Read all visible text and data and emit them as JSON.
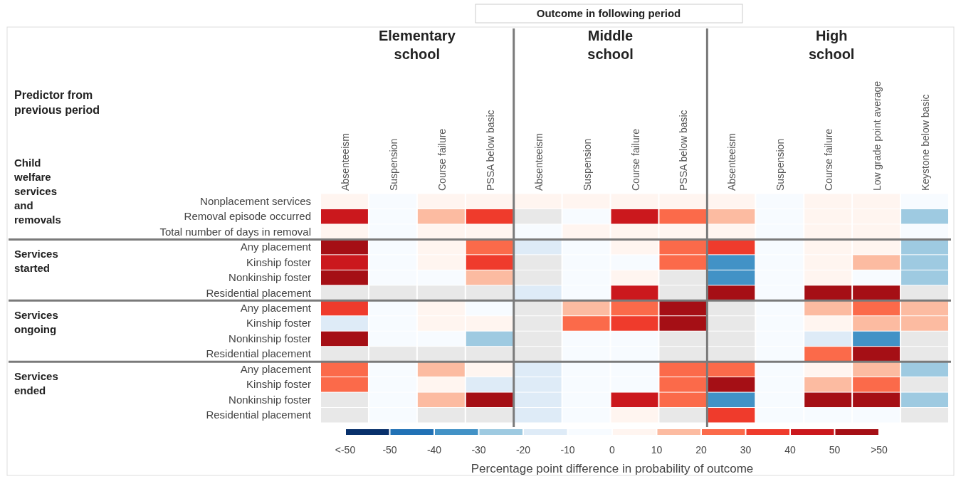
{
  "chart_data": {
    "type": "heatmap",
    "clabel": "Percentage point difference in probability of outcome",
    "annotations": [
      "Outcome in following period",
      "Elementary school",
      "Middle school",
      "High school",
      "Predictor from previous period",
      "Child welfare services and removals",
      "Services started",
      "Services ongoing",
      "Services ended"
    ],
    "categories": [
      "Absenteeism",
      "Suspension",
      "Course failure",
      "PSSA below basic",
      "Absenteeism",
      "Suspension",
      "Course failure",
      "PSSA below basic",
      "Absenteeism",
      "Suspension",
      "Course failure",
      "Low grade point average",
      "Keystone below basic"
    ],
    "y_categories": [
      "Nonplacement services",
      "Removal episode occurred",
      "Total number of days in removal",
      "Any placement",
      "Kinship foster",
      "Nonkinship foster",
      "Residential placement",
      "Any placement",
      "Kinship foster",
      "Nonkinship foster",
      "Residential placement",
      "Any placement",
      "Kinship foster",
      "Nonkinship foster",
      "Residential placement"
    ],
    "cells": [
      [
        5,
        -5,
        5,
        5,
        5,
        5,
        5,
        5,
        5,
        -5,
        5,
        5,
        -5
      ],
      [
        45,
        -5,
        15,
        35,
        null,
        -5,
        45,
        25,
        15,
        -5,
        5,
        5,
        -25
      ],
      [
        5,
        -5,
        5,
        5,
        -5,
        5,
        5,
        5,
        5,
        -5,
        5,
        5,
        -5
      ],
      [
        55,
        -5,
        5,
        25,
        -15,
        -5,
        5,
        25,
        35,
        -5,
        5,
        5,
        -25
      ],
      [
        45,
        -5,
        5,
        35,
        null,
        -5,
        -5,
        25,
        -35,
        -5,
        5,
        15,
        -25
      ],
      [
        55,
        -5,
        -5,
        15,
        null,
        -5,
        5,
        null,
        -35,
        -5,
        5,
        -5,
        -25
      ],
      [
        null,
        null,
        null,
        null,
        -15,
        -5,
        45,
        null,
        55,
        -5,
        55,
        55,
        null
      ],
      [
        35,
        -5,
        5,
        -5,
        null,
        15,
        25,
        55,
        null,
        -5,
        15,
        25,
        15
      ],
      [
        -15,
        -5,
        5,
        5,
        null,
        25,
        35,
        55,
        null,
        -5,
        5,
        15,
        15
      ],
      [
        55,
        -5,
        -5,
        -25,
        null,
        -5,
        -5,
        null,
        null,
        -5,
        -15,
        -35,
        null
      ],
      [
        null,
        null,
        null,
        null,
        null,
        -5,
        -5,
        null,
        null,
        -5,
        25,
        55,
        null
      ],
      [
        25,
        -5,
        15,
        5,
        -15,
        -5,
        -5,
        25,
        25,
        -5,
        5,
        15,
        -25
      ],
      [
        25,
        -5,
        5,
        -15,
        -15,
        -5,
        -5,
        25,
        55,
        -5,
        15,
        25,
        null
      ],
      [
        null,
        -5,
        15,
        55,
        -15,
        -5,
        45,
        25,
        -35,
        -5,
        55,
        55,
        -25
      ],
      [
        null,
        -5,
        null,
        null,
        -15,
        -5,
        5,
        null,
        35,
        -5,
        -5,
        -5,
        null
      ]
    ],
    "clim": [
      -60,
      60
    ],
    "cticks": [
      {
        "value": -60,
        "label": "<-50"
      },
      -50,
      -40,
      -30,
      -20,
      -10,
      0,
      10,
      20,
      30,
      40,
      50,
      {
        "value": 60,
        "label": ">50"
      }
    ],
    "colors": [
      "#08306b",
      "#2171b5",
      "#4292c6",
      "#9ecae1",
      "#deebf7",
      "#f7fbff",
      "#fff5f0",
      "#fcbba1",
      "#fb6a4a",
      "#ef3b2c",
      "#cb181d",
      "#a50f15"
    ]
  }
}
